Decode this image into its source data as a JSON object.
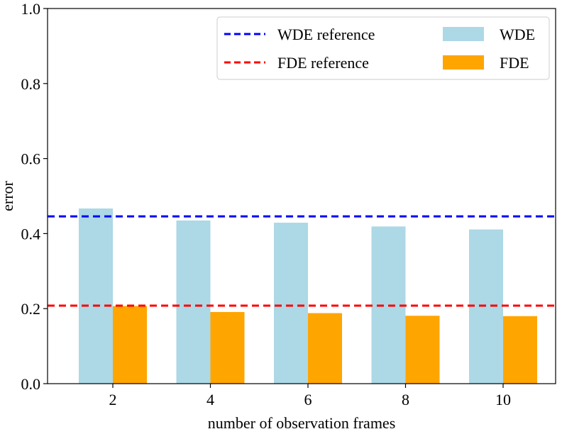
{
  "chart_data": {
    "type": "bar",
    "title": "",
    "xlabel": "number of observation frames",
    "ylabel": "error",
    "categories": [
      "2",
      "4",
      "6",
      "8",
      "10"
    ],
    "ylim": [
      0.0,
      1.0
    ],
    "yticks": [
      "0.0",
      "0.2",
      "0.4",
      "0.6",
      "0.8",
      "1.0"
    ],
    "series": [
      {
        "name": "WDE",
        "color": "#add8e6",
        "values": [
          0.467,
          0.435,
          0.429,
          0.419,
          0.411
        ]
      },
      {
        "name": "FDE",
        "color": "#ffa500",
        "values": [
          0.207,
          0.191,
          0.188,
          0.181,
          0.18
        ]
      }
    ],
    "reference_lines": [
      {
        "name": "WDE reference",
        "color": "#0000ff",
        "value": 0.446
      },
      {
        "name": "FDE reference",
        "color": "#ff0000",
        "value": 0.208
      }
    ],
    "legend_position": "top-right",
    "grid": false
  }
}
